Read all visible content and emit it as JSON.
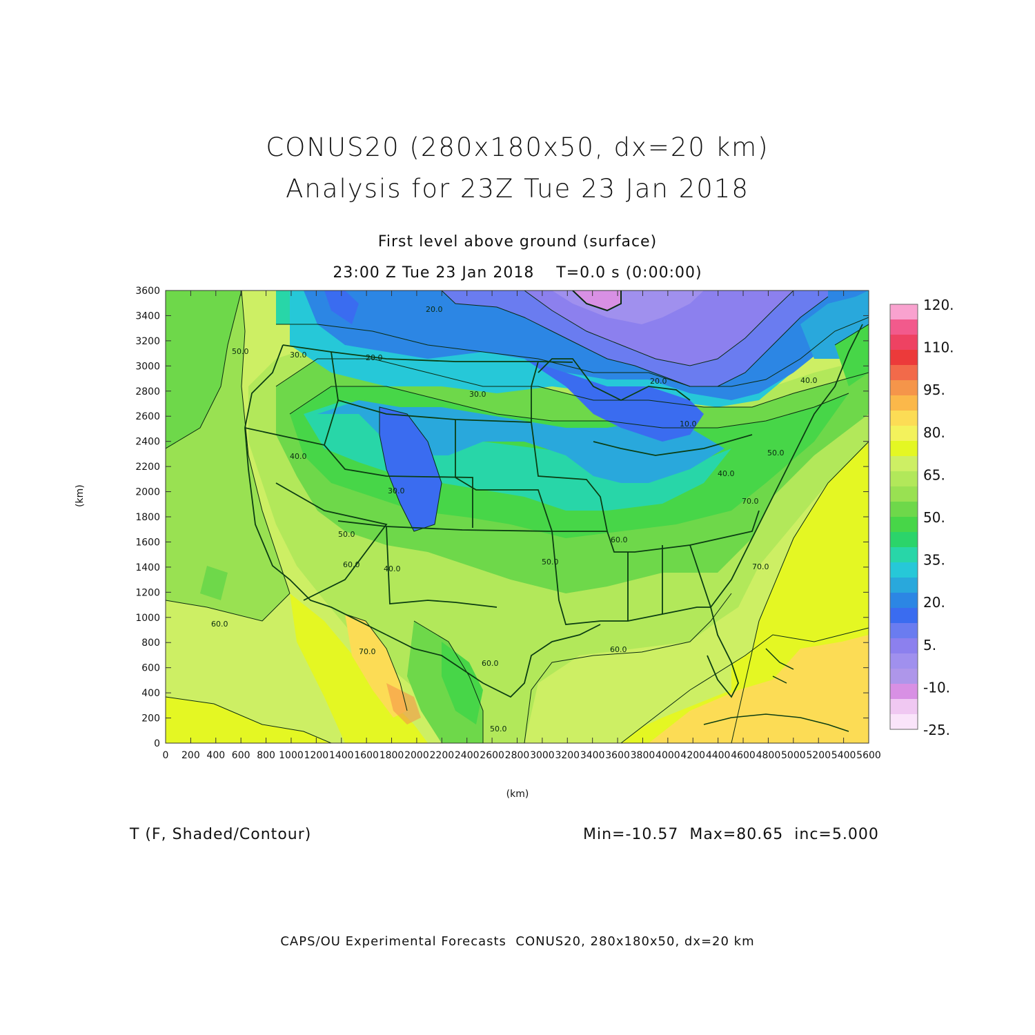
{
  "title": {
    "line1": "CONUS20 (280x180x50, dx=20 km)",
    "line2": "Analysis for 23Z Tue 23 Jan 2018"
  },
  "subtitle": {
    "line1": "First level above ground (surface)",
    "line2": "23:00 Z Tue 23 Jan 2018    T=0.0 s (0:00:00)"
  },
  "axes": {
    "xlabel": "(km)",
    "ylabel": "(km)",
    "x_ticks": [
      "0",
      "200",
      "400",
      "600",
      "800",
      "1000",
      "1200",
      "1400",
      "1600",
      "1800",
      "2000",
      "2200",
      "2400",
      "2600",
      "2800",
      "3000",
      "3200",
      "3400",
      "3600",
      "3800",
      "4000",
      "4200",
      "4400",
      "4600",
      "4800",
      "5000",
      "5200",
      "5400",
      "5600"
    ],
    "y_ticks": [
      "0",
      "200",
      "400",
      "600",
      "800",
      "1000",
      "1200",
      "1400",
      "1600",
      "1800",
      "2000",
      "2200",
      "2400",
      "2600",
      "2800",
      "3000",
      "3200",
      "3400",
      "3600"
    ],
    "xlim": [
      0,
      5600
    ],
    "ylim": [
      0,
      3600
    ]
  },
  "field": {
    "variable_label": "T (F, Shaded/Contour)",
    "stats_label": "Min=-10.57  Max=80.65  inc=5.000",
    "min": -10.57,
    "max": 80.65,
    "increment": 5.0
  },
  "colorbar": {
    "labels": [
      "120.",
      "110.",
      "95.",
      "80.",
      "65.",
      "50.",
      "35.",
      "20.",
      "5.",
      "-10.",
      "-25."
    ],
    "colors": [
      "#f9a2cf",
      "#f25a8c",
      "#ee4262",
      "#ec3a3a",
      "#f26a4a",
      "#f5954a",
      "#fbb84a",
      "#fcdc55",
      "#f3f25c",
      "#e4f723",
      "#cdef64",
      "#b2e85a",
      "#99e152",
      "#6ed84a",
      "#47d648",
      "#2bd46a",
      "#28d6a8",
      "#26c8d8",
      "#29a8dc",
      "#2c86e4",
      "#3a6cf0",
      "#6a7cf0",
      "#8c80ee",
      "#a090ee",
      "#ae96ea",
      "#d890e4",
      "#f0c8f2",
      "#fae4fa"
    ]
  },
  "contour_labels": [
    "50.0",
    "30.0",
    "20.0",
    "20.0",
    "30.0",
    "40.0",
    "30.0",
    "50.0",
    "60.0",
    "40.0",
    "50.0",
    "60.0",
    "70.0",
    "60.0",
    "50.0",
    "60.0",
    "70.0",
    "20.0",
    "10.0",
    "40.0",
    "50.0",
    "60.0",
    "40.0",
    "70.0"
  ],
  "footer": "CAPS/OU Experimental Forecasts  CONUS20, 280x180x50, dx=20 km"
}
